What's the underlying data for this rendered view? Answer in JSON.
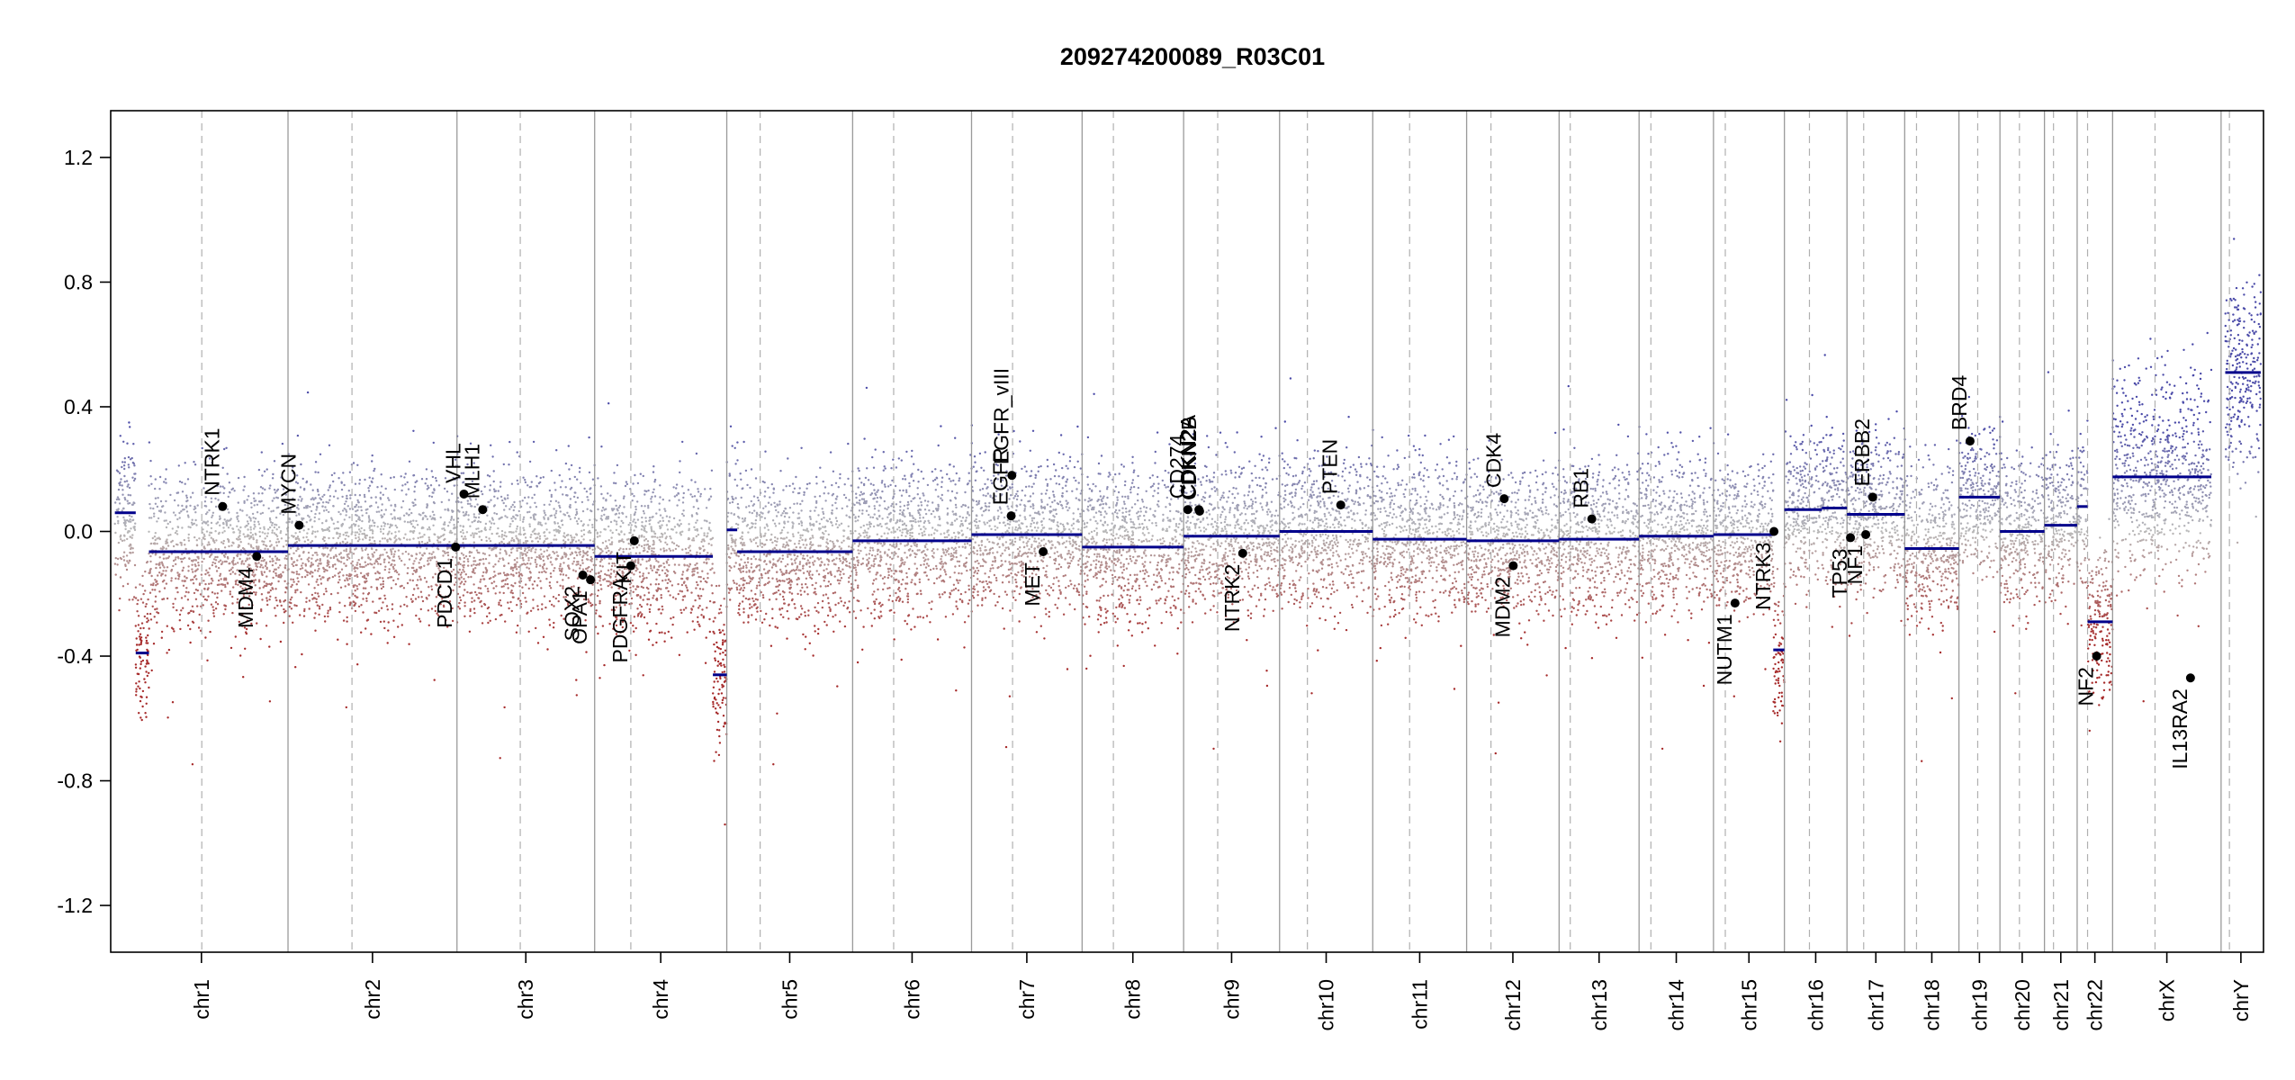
{
  "chart_data": {
    "type": "scatter",
    "title": "209274200089_R03C01",
    "xlabel": "",
    "ylabel": "",
    "ylim": [
      -1.35,
      1.35
    ],
    "yticks": [
      -1.2,
      -0.8,
      -0.4,
      0.0,
      0.4,
      0.8,
      1.2
    ],
    "grid": "chromosome boundaries and centromeres",
    "colors": {
      "gain": "#4a4aa8",
      "neutral": "#b8b8b8",
      "loss": "#a62a2a",
      "segment": "#00008b",
      "gene": "#000000"
    },
    "chromosomes": [
      {
        "name": "chr1",
        "start": 0,
        "end": 249,
        "cen": 125
      },
      {
        "name": "chr2",
        "start": 249,
        "end": 492,
        "cen": 341
      },
      {
        "name": "chr3",
        "start": 492,
        "end": 690,
        "cen": 583
      },
      {
        "name": "chr4",
        "start": 690,
        "end": 880,
        "cen": 742
      },
      {
        "name": "chr5",
        "start": 880,
        "end": 1061,
        "cen": 928
      },
      {
        "name": "chr6",
        "start": 1061,
        "end": 1232,
        "cen": 1120
      },
      {
        "name": "chr7",
        "start": 1232,
        "end": 1391,
        "cen": 1291
      },
      {
        "name": "chr8",
        "start": 1391,
        "end": 1537,
        "cen": 1436
      },
      {
        "name": "chr9",
        "start": 1537,
        "end": 1675,
        "cen": 1586
      },
      {
        "name": "chr10",
        "start": 1675,
        "end": 1809,
        "cen": 1715
      },
      {
        "name": "chr11",
        "start": 1809,
        "end": 1944,
        "cen": 1862
      },
      {
        "name": "chr12",
        "start": 1944,
        "end": 2077,
        "cen": 1979
      },
      {
        "name": "chr13",
        "start": 2077,
        "end": 2192,
        "cen": 2093
      },
      {
        "name": "chr14",
        "start": 2192,
        "end": 2299,
        "cen": 2209
      },
      {
        "name": "chr15",
        "start": 2299,
        "end": 2401,
        "cen": 2316
      },
      {
        "name": "chr16",
        "start": 2401,
        "end": 2491,
        "cen": 2437
      },
      {
        "name": "chr17",
        "start": 2491,
        "end": 2574,
        "cen": 2515
      },
      {
        "name": "chr18",
        "start": 2574,
        "end": 2652,
        "cen": 2591
      },
      {
        "name": "chr19",
        "start": 2652,
        "end": 2711,
        "cen": 2679
      },
      {
        "name": "chr20",
        "start": 2711,
        "end": 2775,
        "cen": 2739
      },
      {
        "name": "chr21",
        "start": 2775,
        "end": 2822,
        "cen": 2788
      },
      {
        "name": "chr22",
        "start": 2822,
        "end": 2873,
        "cen": 2837
      },
      {
        "name": "chrX",
        "start": 2873,
        "end": 3029,
        "cen": 2934
      },
      {
        "name": "chrY",
        "start": 3029,
        "end": 3086,
        "cen": 3041
      }
    ],
    "segments": [
      {
        "chrom": "chr1",
        "x0": 0,
        "x1": 30,
        "y": 0.06
      },
      {
        "chrom": "chr1",
        "x0": 30,
        "x1": 49,
        "y": -0.39
      },
      {
        "chrom": "chr1",
        "x0": 49,
        "x1": 249,
        "y": -0.065
      },
      {
        "chrom": "chr2",
        "x0": 249,
        "x1": 492,
        "y": -0.045
      },
      {
        "chrom": "chr3",
        "x0": 492,
        "x1": 690,
        "y": -0.045
      },
      {
        "chrom": "chr4",
        "x0": 690,
        "x1": 860,
        "y": -0.08
      },
      {
        "chrom": "chr4",
        "x0": 860,
        "x1": 880,
        "y": -0.46
      },
      {
        "chrom": "chr5",
        "x0": 880,
        "x1": 895,
        "y": 0.005
      },
      {
        "chrom": "chr5",
        "x0": 895,
        "x1": 1061,
        "y": -0.065
      },
      {
        "chrom": "chr6",
        "x0": 1061,
        "x1": 1232,
        "y": -0.03
      },
      {
        "chrom": "chr7",
        "x0": 1232,
        "x1": 1391,
        "y": -0.01
      },
      {
        "chrom": "chr8",
        "x0": 1391,
        "x1": 1537,
        "y": -0.05
      },
      {
        "chrom": "chr9",
        "x0": 1537,
        "x1": 1675,
        "y": -0.015
      },
      {
        "chrom": "chr10",
        "x0": 1675,
        "x1": 1809,
        "y": 0.0
      },
      {
        "chrom": "chr11",
        "x0": 1809,
        "x1": 1944,
        "y": -0.025
      },
      {
        "chrom": "chr12",
        "x0": 1944,
        "x1": 2077,
        "y": -0.03
      },
      {
        "chrom": "chr13",
        "x0": 2077,
        "x1": 2192,
        "y": -0.025
      },
      {
        "chrom": "chr14",
        "x0": 2192,
        "x1": 2299,
        "y": -0.015
      },
      {
        "chrom": "chr15",
        "x0": 2299,
        "x1": 2385,
        "y": -0.01
      },
      {
        "chrom": "chr15",
        "x0": 2385,
        "x1": 2401,
        "y": -0.38
      },
      {
        "chrom": "chr16",
        "x0": 2401,
        "x1": 2455,
        "y": 0.07
      },
      {
        "chrom": "chr16",
        "x0": 2455,
        "x1": 2491,
        "y": 0.075
      },
      {
        "chrom": "chr17",
        "x0": 2491,
        "x1": 2574,
        "y": 0.055
      },
      {
        "chrom": "chr18",
        "x0": 2574,
        "x1": 2652,
        "y": -0.055
      },
      {
        "chrom": "chr19",
        "x0": 2652,
        "x1": 2711,
        "y": 0.11
      },
      {
        "chrom": "chr20",
        "x0": 2711,
        "x1": 2775,
        "y": 0.0
      },
      {
        "chrom": "chr21",
        "x0": 2775,
        "x1": 2822,
        "y": 0.02
      },
      {
        "chrom": "chr22",
        "x0": 2822,
        "x1": 2837,
        "y": 0.08
      },
      {
        "chrom": "chr22",
        "x0": 2837,
        "x1": 2873,
        "y": -0.29
      },
      {
        "chrom": "chrX",
        "x0": 2873,
        "x1": 3015,
        "y": 0.175
      },
      {
        "chrom": "chrY",
        "x0": 3035,
        "x1": 3086,
        "y": 0.51
      }
    ],
    "genes": [
      {
        "name": "NTRK1",
        "x": 155,
        "y": 0.08,
        "label": "above"
      },
      {
        "name": "MDM4",
        "x": 204,
        "y": -0.08,
        "label": "below"
      },
      {
        "name": "MYCN",
        "x": 265,
        "y": 0.02,
        "label": "above"
      },
      {
        "name": "PDCD1",
        "x": 490,
        "y": -0.05,
        "label": "below"
      },
      {
        "name": "VHL",
        "x": 502,
        "y": 0.12,
        "label": "above"
      },
      {
        "name": "MLH1",
        "x": 529,
        "y": 0.07,
        "label": "above"
      },
      {
        "name": "SOX2",
        "x": 673,
        "y": -0.14,
        "label": "below"
      },
      {
        "name": "OPA1",
        "x": 684,
        "y": -0.155,
        "label": "below"
      },
      {
        "name": "PDGFRA",
        "x": 742,
        "y": -0.11,
        "label": "below"
      },
      {
        "name": "KIT",
        "x": 747,
        "y": -0.03,
        "label": "below"
      },
      {
        "name": "EGFR",
        "x": 1289,
        "y": 0.05,
        "label": "above"
      },
      {
        "name": "EGFR_vIII",
        "x": 1290,
        "y": 0.18,
        "label": "above"
      },
      {
        "name": "MET",
        "x": 1335,
        "y": -0.065,
        "label": "below"
      },
      {
        "name": "CD274",
        "x": 1543,
        "y": 0.07,
        "label": "above"
      },
      {
        "name": "CDKN2A",
        "x": 1559,
        "y": 0.07,
        "label": "above"
      },
      {
        "name": "CDKN2B",
        "x": 1560,
        "y": 0.065,
        "label": "above"
      },
      {
        "name": "NTRK2",
        "x": 1622,
        "y": -0.07,
        "label": "below"
      },
      {
        "name": "PTEN",
        "x": 1763,
        "y": 0.085,
        "label": "above"
      },
      {
        "name": "CDK4",
        "x": 1998,
        "y": 0.105,
        "label": "above"
      },
      {
        "name": "MDM2",
        "x": 2011,
        "y": -0.11,
        "label": "below"
      },
      {
        "name": "RB1",
        "x": 2124,
        "y": 0.04,
        "label": "above"
      },
      {
        "name": "NUTM1",
        "x": 2330,
        "y": -0.23,
        "label": "below"
      },
      {
        "name": "NTRK3",
        "x": 2386,
        "y": 0.0,
        "label": "below"
      },
      {
        "name": "TP53",
        "x": 2496,
        "y": -0.02,
        "label": "below"
      },
      {
        "name": "NF1",
        "x": 2518,
        "y": -0.01,
        "label": "below"
      },
      {
        "name": "ERBB2",
        "x": 2528,
        "y": 0.11,
        "label": "above"
      },
      {
        "name": "BRD4",
        "x": 2668,
        "y": 0.29,
        "label": "above"
      },
      {
        "name": "NF2",
        "x": 2850,
        "y": -0.4,
        "label": "below"
      },
      {
        "name": "IL13RA2",
        "x": 2985,
        "y": -0.47,
        "label": "below"
      }
    ]
  }
}
